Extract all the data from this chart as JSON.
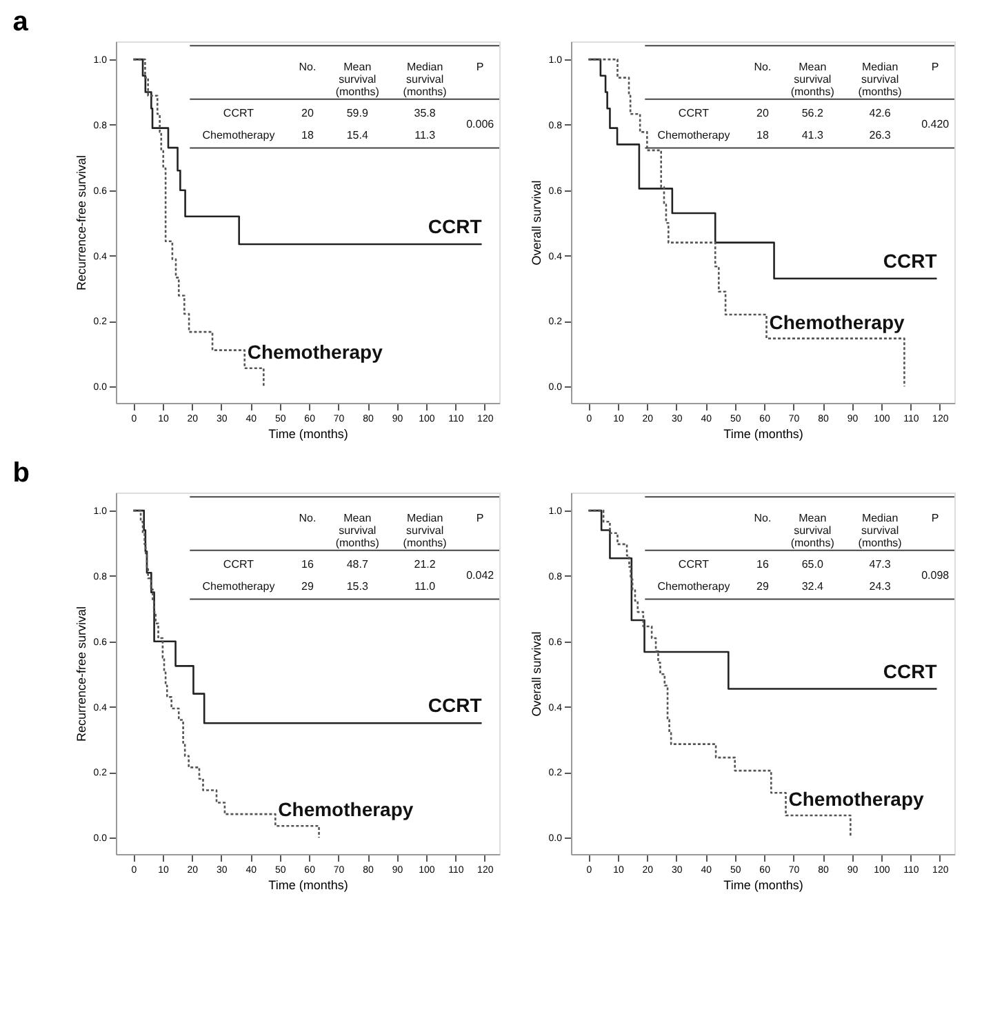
{
  "chart_data": [
    {
      "type": "step",
      "title": "a",
      "xlabel": "Time (months)",
      "ylabel": "Recurrence-free survival",
      "xlim": [
        -6,
        125
      ],
      "ylim": [
        -0.05,
        1.055
      ],
      "xticks": [
        0,
        10,
        20,
        30,
        40,
        50,
        60,
        70,
        80,
        90,
        100,
        110,
        120
      ],
      "yticks": [
        {
          "value": 0,
          "label": "0.0"
        },
        {
          "value": 0.2,
          "label": "0.2"
        },
        {
          "value": 0.4,
          "label": "0.4"
        },
        {
          "value": 0.6,
          "label": "0.6"
        },
        {
          "value": 0.8,
          "label": "0.8"
        },
        {
          "value": 1,
          "label": "1.0"
        }
      ],
      "grid": false,
      "series": [
        {
          "name": "CCRT",
          "color": "#222222",
          "line_style": "solid",
          "x": [
            0,
            3.2,
            4.1,
            6.1,
            6.5,
            11.9,
            15.1,
            16,
            17.7,
            36.1,
            119
          ],
          "values": [
            1,
            0.95,
            0.9,
            0.85,
            0.79,
            0.73,
            0.66,
            0.6,
            0.52,
            0.435,
            0.435
          ]
        },
        {
          "name": "Chemotherapy",
          "color": "#555555",
          "line_style": "dotted",
          "x": [
            0,
            4,
            5,
            8.2,
            9,
            9.5,
            10.2,
            11,
            13.3,
            14.5,
            15.5,
            17.4,
            19,
            27,
            38,
            44.5
          ],
          "values": [
            1,
            0.944,
            0.889,
            0.833,
            0.778,
            0.72,
            0.667,
            0.444,
            0.389,
            0.333,
            0.278,
            0.222,
            0.167,
            0.111,
            0.056,
            0
          ]
        }
      ],
      "annotations": [
        "No.",
        "Mean survival (months)",
        "Median survival (months)",
        "P",
        "CCRT",
        "20",
        "59.9",
        "35.8",
        "Chemotherapy",
        "18",
        "15.4",
        "11.3",
        "0.006"
      ]
    },
    {
      "type": "step",
      "xlabel": "Time (months)",
      "ylabel": "Overall survival",
      "xlim": [
        -6,
        125
      ],
      "ylim": [
        -0.05,
        1.055
      ],
      "xticks": [
        0,
        10,
        20,
        30,
        40,
        50,
        60,
        70,
        80,
        90,
        100,
        110,
        120
      ],
      "yticks": [
        {
          "value": 0,
          "label": "0.0"
        },
        {
          "value": 0.2,
          "label": "0.2"
        },
        {
          "value": 0.4,
          "label": "0.4"
        },
        {
          "value": 0.6,
          "label": "0.6"
        },
        {
          "value": 0.8,
          "label": "0.8"
        },
        {
          "value": 1,
          "label": "1.0"
        }
      ],
      "grid": false,
      "series": [
        {
          "name": "CCRT",
          "color": "#222222",
          "line_style": "solid",
          "x": [
            0,
            4.1,
            5.8,
            6.4,
            7.3,
            9.8,
            17.3,
            28.6,
            43.3,
            63.4,
            119
          ],
          "values": [
            1,
            0.95,
            0.9,
            0.85,
            0.79,
            0.74,
            0.605,
            0.53,
            0.44,
            0.33,
            0.33
          ]
        },
        {
          "name": "Chemotherapy",
          "color": "#555555",
          "line_style": "dotted",
          "x": [
            0,
            9.9,
            13.8,
            14.3,
            17.6,
            20,
            24.8,
            25.8,
            26.5,
            27.3,
            43.3,
            44.5,
            46.8,
            60.8,
            107.9
          ],
          "values": [
            1,
            0.944,
            0.889,
            0.833,
            0.778,
            0.722,
            0.61,
            0.556,
            0.5,
            0.44,
            0.367,
            0.29,
            0.22,
            0.147,
            0
          ]
        }
      ],
      "annotations": [
        "No.",
        "Mean survival (months)",
        "Median survival (months)",
        "P",
        "CCRT",
        "20",
        "56.2",
        "42.6",
        "Chemotherapy",
        "18",
        "41.3",
        "26.3",
        "0.420"
      ]
    },
    {
      "type": "step",
      "title": "b",
      "xlabel": "Time (months)",
      "ylabel": "Recurrence-free survival",
      "xlim": [
        -6,
        125
      ],
      "ylim": [
        -0.05,
        1.055
      ],
      "xticks": [
        0,
        10,
        20,
        30,
        40,
        50,
        60,
        70,
        80,
        90,
        100,
        110,
        120
      ],
      "yticks": [
        {
          "value": 0,
          "label": "0.0"
        },
        {
          "value": 0.2,
          "label": "0.2"
        },
        {
          "value": 0.4,
          "label": "0.4"
        },
        {
          "value": 0.6,
          "label": "0.6"
        },
        {
          "value": 0.8,
          "label": "0.8"
        },
        {
          "value": 1,
          "label": "1.0"
        }
      ],
      "grid": false,
      "series": [
        {
          "name": "CCRT",
          "color": "#222222",
          "line_style": "solid",
          "x": [
            0,
            3.6,
            4.1,
            4.6,
            6.1,
            7.1,
            14.4,
            20.5,
            24.2,
            119
          ],
          "values": [
            1,
            0.94,
            0.875,
            0.81,
            0.75,
            0.6,
            0.525,
            0.44,
            0.35,
            0.35
          ]
        },
        {
          "name": "Chemotherapy",
          "color": "#555555",
          "line_style": "dotted",
          "x": [
            0,
            2.5,
            3.2,
            3.8,
            4.2,
            4.6,
            5,
            6,
            6.6,
            7,
            7.6,
            8.5,
            10,
            10.5,
            11,
            11.5,
            13,
            15.5,
            17,
            17.6,
            18.9,
            22.5,
            23.8,
            28.4,
            31.2,
            48.5,
            63.4
          ],
          "values": [
            1,
            0.966,
            0.931,
            0.897,
            0.862,
            0.828,
            0.793,
            0.759,
            0.724,
            0.69,
            0.655,
            0.61,
            0.55,
            0.505,
            0.465,
            0.43,
            0.395,
            0.36,
            0.29,
            0.25,
            0.215,
            0.18,
            0.145,
            0.107,
            0.072,
            0.036,
            0
          ]
        }
      ],
      "annotations": [
        "No.",
        "Mean survival (months)",
        "Median survival (months)",
        "P",
        "CCRT",
        "16",
        "48.7",
        "21.2",
        "Chemotherapy",
        "29",
        "15.3",
        "11.0",
        "0.042"
      ]
    },
    {
      "type": "step",
      "xlabel": "Time (months)",
      "ylabel": "Overall survival",
      "xlim": [
        -6,
        125
      ],
      "ylim": [
        -0.05,
        1.055
      ],
      "xticks": [
        0,
        10,
        20,
        30,
        40,
        50,
        60,
        70,
        80,
        90,
        100,
        110,
        120
      ],
      "yticks": [
        {
          "value": 0,
          "label": "0.0"
        },
        {
          "value": 0.2,
          "label": "0.2"
        },
        {
          "value": 0.4,
          "label": "0.4"
        },
        {
          "value": 0.6,
          "label": "0.6"
        },
        {
          "value": 0.8,
          "label": "0.8"
        },
        {
          "value": 1,
          "label": "1.0"
        }
      ],
      "grid": false,
      "series": [
        {
          "name": "CCRT",
          "color": "#222222",
          "line_style": "solid",
          "x": [
            0,
            4.4,
            7.3,
            14.7,
            19.1,
            47.8,
            119
          ],
          "values": [
            1,
            0.94,
            0.854,
            0.665,
            0.568,
            0.455,
            0.455
          ]
        },
        {
          "name": "Chemotherapy",
          "color": "#555555",
          "line_style": "dotted",
          "x": [
            0,
            5.1,
            7.3,
            9.9,
            13.1,
            13.9,
            14.4,
            15,
            15.9,
            16.8,
            18.7,
            21.6,
            23,
            23.8,
            24.5,
            26,
            27,
            27.6,
            28.2,
            43.5,
            50,
            62.4,
            67.4,
            89.5
          ],
          "values": [
            1,
            0.966,
            0.931,
            0.897,
            0.862,
            0.828,
            0.79,
            0.759,
            0.724,
            0.69,
            0.646,
            0.61,
            0.57,
            0.535,
            0.5,
            0.465,
            0.36,
            0.32,
            0.286,
            0.245,
            0.205,
            0.137,
            0.068,
            0
          ]
        }
      ],
      "annotations": [
        "No.",
        "Mean survival (months)",
        "Median survival (months)",
        "P",
        "CCRT",
        "16",
        "65.0",
        "47.3",
        "Chemotherapy",
        "29",
        "32.4",
        "24.3",
        "0.098"
      ]
    }
  ]
}
